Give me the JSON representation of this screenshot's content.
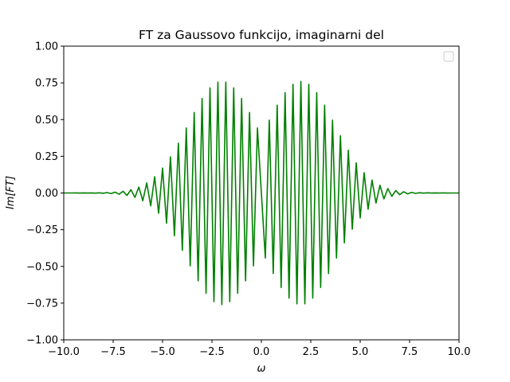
{
  "chart_data": {
    "type": "line",
    "title": "FT za Gaussovo funkcijo, imaginarni del",
    "xlabel": "ω",
    "ylabel": "Im[FT]",
    "xlim": [
      -10,
      10
    ],
    "ylim": [
      -1.0,
      1.0
    ],
    "x_ticks": [
      -10,
      -7.5,
      -5,
      -2.5,
      0,
      2.5,
      5,
      7.5,
      10
    ],
    "x_tick_labels": [
      "−10.0",
      "−7.5",
      "−5.0",
      "−2.5",
      "0.0",
      "2.5",
      "5.0",
      "7.5",
      "10.0"
    ],
    "y_ticks": [
      -1.0,
      -0.75,
      -0.5,
      -0.25,
      0.0,
      0.25,
      0.5,
      0.75,
      1.0
    ],
    "y_tick_labels": [
      "−1.00",
      "−0.75",
      "−0.50",
      "−0.25",
      "0.00",
      "0.25",
      "0.50",
      "0.75",
      "1.00"
    ],
    "grid": false,
    "legend": "upper right, empty",
    "series": [
      {
        "color": "#008000",
        "model": "Im[FT](ω) = sign(ω) · 0.76 · exp(−(|ω| − 2)² / 6) · (−1)^k at sample ω_k, sampled every 0.2 on [−10, 10]",
        "x_range": [
          -10,
          10
        ],
        "x_step": 0.2,
        "peak_abs": 0.76,
        "peak_at": [
          -2,
          2
        ]
      }
    ]
  }
}
